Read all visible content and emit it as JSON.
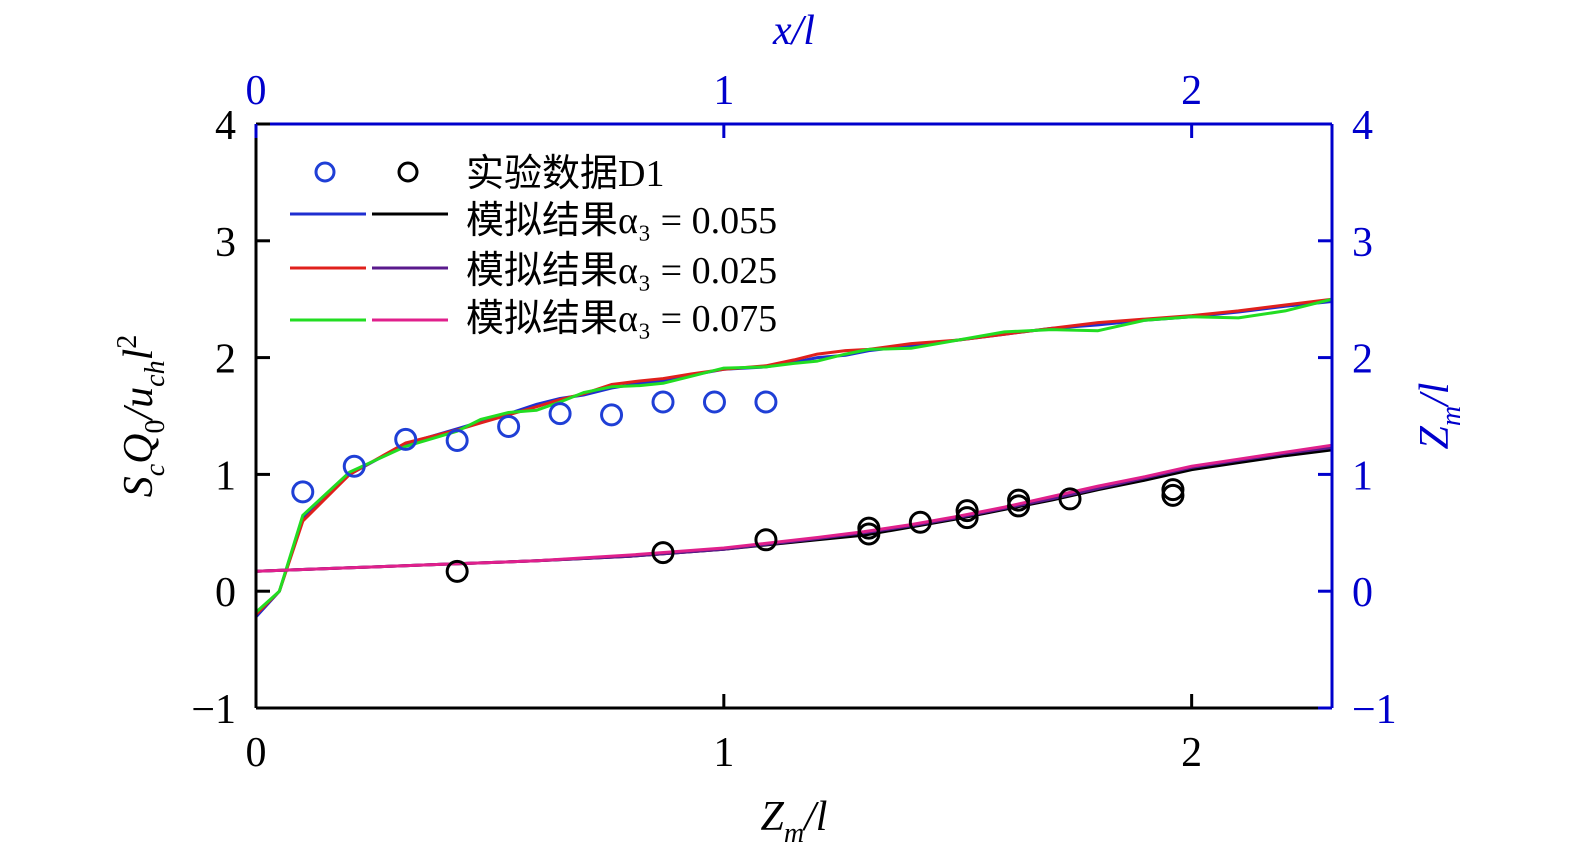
{
  "colors": {
    "axis_black": "#000000",
    "axis_blue": "#0000cc",
    "exp_blue": "#1f3fd6",
    "exp_black": "#000000",
    "sim_055_a": "#1f2fd0",
    "sim_055_b": "#000000",
    "sim_025_a": "#e0201c",
    "sim_025_b": "#5a1a8c",
    "sim_075_a": "#22dd22",
    "sim_075_b": "#e0208c"
  },
  "chart_data": {
    "type": "line",
    "bottom_axis": {
      "label_main": "Z",
      "label_sub": "m",
      "label_tail": "/l",
      "range": [
        0,
        2.3
      ],
      "ticks": [
        "0",
        "1",
        "2"
      ]
    },
    "top_axis": {
      "label": "x/l",
      "range": [
        0,
        2.3
      ],
      "ticks": [
        "0",
        "1",
        "2"
      ]
    },
    "left_axis": {
      "label_parts": [
        "S",
        "c",
        "Q",
        "0",
        "/u",
        "ch",
        "l",
        "2"
      ],
      "range": [
        -1,
        4
      ],
      "ticks": [
        "−1",
        "0",
        "1",
        "2",
        "3",
        "4"
      ]
    },
    "right_axis": {
      "label_main": "Z",
      "label_sub": "m",
      "label_tail": "/l",
      "range": [
        -1,
        4
      ],
      "ticks": [
        "−1",
        "0",
        "1",
        "2",
        "3",
        "4"
      ]
    },
    "legend": {
      "placement": "top-left",
      "entries": [
        {
          "label_cn": "实验数据D1",
          "label_eq": ""
        },
        {
          "label_cn": "模拟结果",
          "label_eq": "α₃ = 0.055"
        },
        {
          "label_cn": "模拟结果",
          "label_eq": "α₃ = 0.025"
        },
        {
          "label_cn": "模拟结果",
          "label_eq": "α₃ = 0.075"
        }
      ]
    },
    "experiment_blue": [
      [
        0.1,
        0.85
      ],
      [
        0.21,
        1.07
      ],
      [
        0.32,
        1.3
      ],
      [
        0.43,
        1.29
      ],
      [
        0.54,
        1.41
      ],
      [
        0.65,
        1.52
      ],
      [
        0.76,
        1.51
      ],
      [
        0.87,
        1.62
      ],
      [
        0.98,
        1.62
      ],
      [
        1.09,
        1.62
      ]
    ],
    "experiment_black": [
      [
        0.43,
        0.17
      ],
      [
        0.87,
        0.33
      ],
      [
        1.09,
        0.44
      ],
      [
        1.31,
        0.54
      ],
      [
        1.31,
        0.49
      ],
      [
        1.42,
        0.59
      ],
      [
        1.52,
        0.69
      ],
      [
        1.52,
        0.63
      ],
      [
        1.63,
        0.78
      ],
      [
        1.63,
        0.73
      ],
      [
        1.74,
        0.79
      ],
      [
        1.96,
        0.87
      ],
      [
        1.96,
        0.82
      ]
    ],
    "series": [
      {
        "key": "sim_055_upper",
        "color_key": "sim_055_a",
        "x": [
          0,
          0.05,
          0.1,
          0.2,
          0.32,
          0.43,
          0.48,
          0.54,
          0.6,
          0.65,
          0.7,
          0.76,
          0.82,
          0.87,
          0.93,
          1.0,
          1.09,
          1.15,
          1.2,
          1.26,
          1.31,
          1.4,
          1.5,
          1.6,
          1.7,
          1.8,
          1.9,
          2.0,
          2.1,
          2.2,
          2.3
        ],
        "y": [
          -0.22,
          0.0,
          0.62,
          1.0,
          1.26,
          1.39,
          1.45,
          1.52,
          1.6,
          1.65,
          1.68,
          1.74,
          1.78,
          1.8,
          1.85,
          1.9,
          1.92,
          1.96,
          2.0,
          2.02,
          2.06,
          2.1,
          2.15,
          2.2,
          2.25,
          2.28,
          2.32,
          2.35,
          2.39,
          2.44,
          2.48
        ]
      },
      {
        "key": "sim_025_upper",
        "color_key": "sim_025_a",
        "x": [
          0,
          0.05,
          0.1,
          0.2,
          0.32,
          0.43,
          0.48,
          0.54,
          0.6,
          0.65,
          0.7,
          0.76,
          0.82,
          0.87,
          0.93,
          1.0,
          1.09,
          1.15,
          1.2,
          1.26,
          1.31,
          1.4,
          1.5,
          1.6,
          1.7,
          1.8,
          1.9,
          2.0,
          2.1,
          2.2,
          2.3
        ],
        "y": [
          -0.2,
          0.0,
          0.6,
          1.0,
          1.27,
          1.38,
          1.44,
          1.51,
          1.58,
          1.64,
          1.69,
          1.77,
          1.8,
          1.82,
          1.86,
          1.9,
          1.93,
          1.98,
          2.03,
          2.06,
          2.07,
          2.12,
          2.15,
          2.2,
          2.25,
          2.3,
          2.33,
          2.36,
          2.4,
          2.45,
          2.5
        ]
      },
      {
        "key": "sim_075_upper",
        "color_key": "sim_075_a",
        "x": [
          0,
          0.05,
          0.1,
          0.2,
          0.32,
          0.43,
          0.48,
          0.54,
          0.6,
          0.65,
          0.7,
          0.76,
          0.82,
          0.87,
          0.93,
          1.0,
          1.09,
          1.15,
          1.2,
          1.26,
          1.31,
          1.4,
          1.5,
          1.6,
          1.7,
          1.8,
          1.9,
          2.0,
          2.1,
          2.2,
          2.3
        ],
        "y": [
          -0.18,
          0.0,
          0.65,
          1.02,
          1.24,
          1.37,
          1.47,
          1.53,
          1.55,
          1.62,
          1.7,
          1.75,
          1.76,
          1.78,
          1.84,
          1.91,
          1.92,
          1.95,
          1.97,
          2.03,
          2.07,
          2.08,
          2.15,
          2.22,
          2.24,
          2.23,
          2.32,
          2.35,
          2.34,
          2.4,
          2.5
        ]
      },
      {
        "key": "sim_055_lower",
        "color_key": "sim_055_b",
        "x": [
          0,
          0.2,
          0.4,
          0.6,
          0.8,
          1.0,
          1.2,
          1.3,
          1.4,
          1.5,
          1.6,
          1.7,
          1.8,
          1.9,
          2.0,
          2.1,
          2.2,
          2.3
        ],
        "y": [
          0.17,
          0.2,
          0.23,
          0.26,
          0.3,
          0.36,
          0.44,
          0.48,
          0.55,
          0.62,
          0.7,
          0.78,
          0.87,
          0.95,
          1.04,
          1.1,
          1.16,
          1.21
        ]
      },
      {
        "key": "sim_025_lower",
        "color_key": "sim_025_b",
        "x": [
          0,
          0.2,
          0.4,
          0.6,
          0.8,
          1.0,
          1.2,
          1.3,
          1.4,
          1.5,
          1.6,
          1.7,
          1.8,
          1.9,
          2.0,
          2.1,
          2.2,
          2.3
        ],
        "y": [
          0.17,
          0.2,
          0.23,
          0.26,
          0.3,
          0.36,
          0.45,
          0.5,
          0.56,
          0.63,
          0.71,
          0.79,
          0.88,
          0.97,
          1.06,
          1.12,
          1.18,
          1.23
        ]
      },
      {
        "key": "sim_075_lower",
        "color_key": "sim_075_b",
        "x": [
          0,
          0.2,
          0.4,
          0.6,
          0.8,
          1.0,
          1.2,
          1.3,
          1.4,
          1.5,
          1.6,
          1.7,
          1.8,
          1.9,
          2.0,
          2.1,
          2.2,
          2.3
        ],
        "y": [
          0.17,
          0.2,
          0.23,
          0.26,
          0.31,
          0.37,
          0.46,
          0.51,
          0.57,
          0.64,
          0.72,
          0.81,
          0.9,
          0.98,
          1.07,
          1.13,
          1.19,
          1.25
        ]
      }
    ]
  }
}
